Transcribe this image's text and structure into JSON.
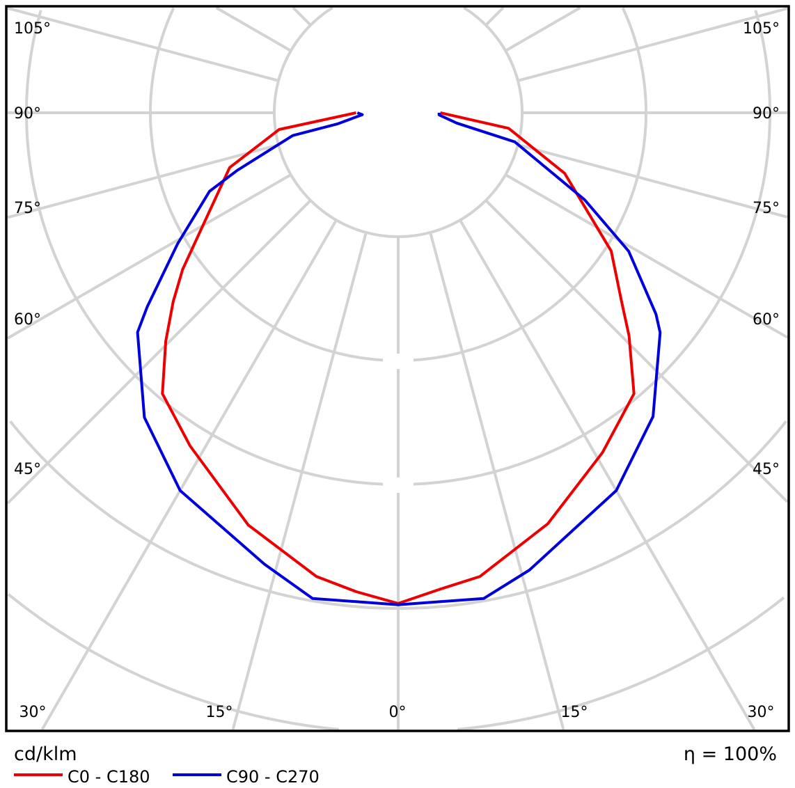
{
  "chart_data": {
    "type": "polar",
    "unit_label": "cd/klm",
    "efficiency_label": "η = 100%",
    "grid": true,
    "angle_labels_side": [
      "105°",
      "90°",
      "75°",
      "60°",
      "45°"
    ],
    "angle_labels_bottom": [
      "30°",
      "15°",
      "0°",
      "15°",
      "30°"
    ],
    "angle_step_deg": 15,
    "legend_position": "bottom-left",
    "note": "",
    "series": [
      {
        "name": "C0 - C180",
        "color": "#ee0000",
        "points": [
          [
            -90,
            0.34
          ],
          [
            -82,
            0.97
          ],
          [
            -72,
            1.43
          ],
          [
            -54,
            2.15
          ],
          [
            -50,
            2.37
          ],
          [
            -45.5,
            2.63
          ],
          [
            -40,
            2.96
          ],
          [
            -32,
            3.17
          ],
          [
            -20,
            3.54
          ],
          [
            -10,
            3.8
          ],
          [
            -5,
            3.88
          ],
          [
            0,
            3.96
          ],
          [
            5,
            3.86
          ],
          [
            10,
            3.8
          ],
          [
            20,
            3.53
          ],
          [
            31,
            3.2
          ],
          [
            40,
            2.96
          ],
          [
            46,
            2.59
          ],
          [
            50,
            2.35
          ],
          [
            57,
            2.05
          ],
          [
            70,
            1.43
          ],
          [
            82,
            0.9
          ],
          [
            90,
            0.34
          ]
        ]
      },
      {
        "name": "C90 - C270",
        "color": "#0000dd",
        "points": [
          [
            -90,
            0.33
          ],
          [
            -87,
            0.29
          ],
          [
            -79.6,
            0.5
          ],
          [
            -77.8,
            0.87
          ],
          [
            -70.3,
            1.38
          ],
          [
            -67.4,
            1.65
          ],
          [
            -59.3,
            2.07
          ],
          [
            -52.3,
            2.56
          ],
          [
            -49.9,
            2.75
          ],
          [
            -39.8,
            3.2
          ],
          [
            -30,
            3.52
          ],
          [
            -16.5,
            3.8
          ],
          [
            -10,
            3.98
          ],
          [
            0,
            3.97
          ],
          [
            10,
            3.98
          ],
          [
            16,
            3.84
          ],
          [
            30,
            3.52
          ],
          [
            40,
            3.2
          ],
          [
            50,
            2.76
          ],
          [
            52,
            2.64
          ],
          [
            59,
            2.17
          ],
          [
            65,
            1.66
          ],
          [
            76,
            0.97
          ],
          [
            80,
            0.48
          ],
          [
            87,
            0.33
          ],
          [
            90,
            0.33
          ]
        ]
      }
    ]
  }
}
